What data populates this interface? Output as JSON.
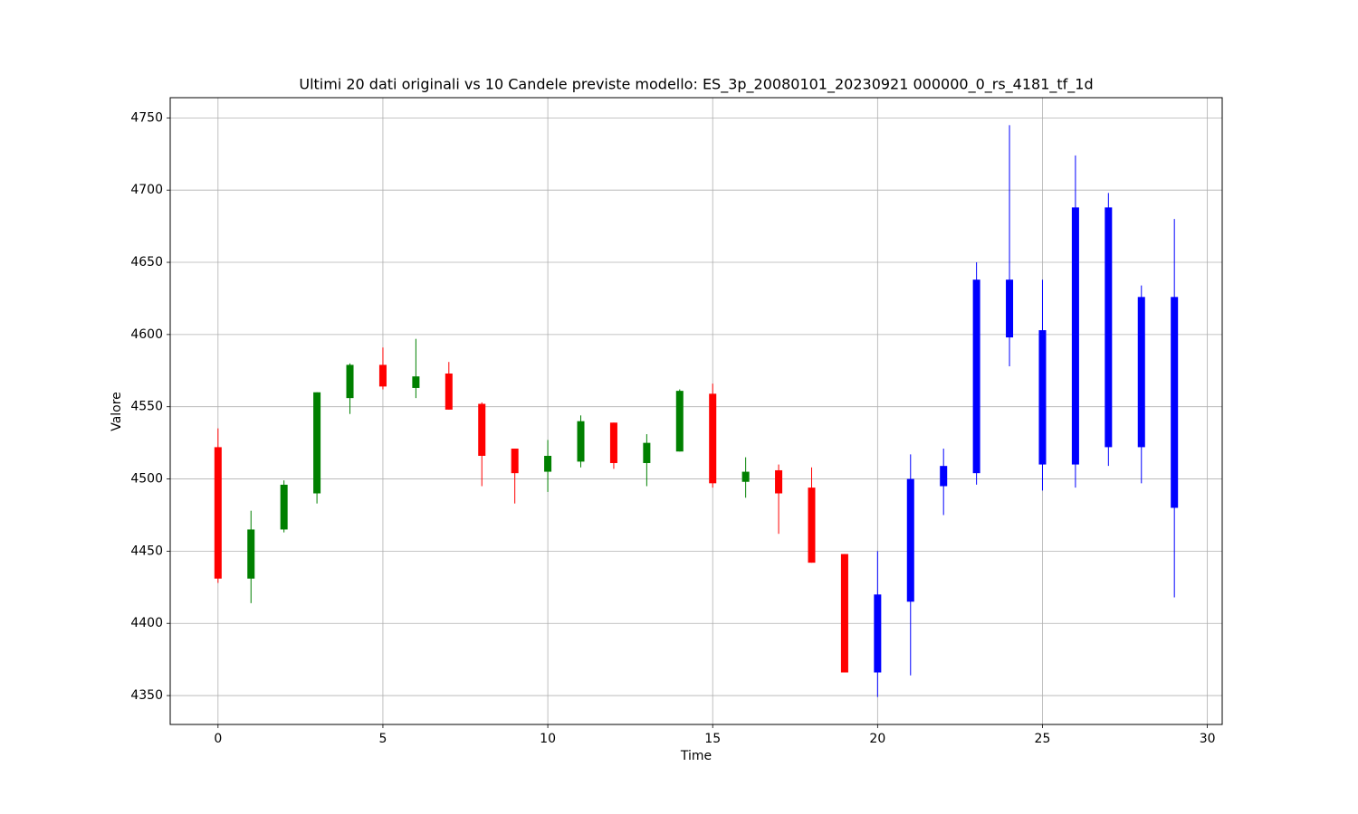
{
  "chart_data": {
    "type": "candlestick",
    "title": "Ultimi 20 dati originali vs 10 Candele previste modello: ES_3p_20080101_20230921 000000_0_rs_4181_tf_1d",
    "xlabel": "Time",
    "ylabel": "Valore",
    "xlim": [
      -1.45,
      30.45
    ],
    "ylim": [
      4330,
      4764
    ],
    "xticks": [
      0,
      5,
      10,
      15,
      20,
      25,
      30
    ],
    "yticks": [
      4350,
      4400,
      4450,
      4500,
      4550,
      4600,
      4650,
      4700,
      4750
    ],
    "grid": true,
    "series": [
      {
        "up_color": "#008000",
        "down_color": "#ff0000",
        "x": [
          0,
          1,
          2,
          3,
          4,
          5,
          6,
          7,
          8,
          9,
          10,
          11,
          12,
          13,
          14,
          15,
          16,
          17,
          18,
          19
        ],
        "open": [
          4522,
          4431,
          4465,
          4490,
          4556,
          4579,
          4563,
          4573,
          4552,
          4521,
          4505,
          4512,
          4539,
          4511,
          4519,
          4559,
          4498,
          4506,
          4494,
          4448
        ],
        "high": [
          4535,
          4478,
          4499,
          4560,
          4580,
          4591,
          4597,
          4581,
          4553,
          4521,
          4527,
          4544,
          4539,
          4531,
          4562,
          4566,
          4515,
          4510,
          4508,
          4448
        ],
        "low": [
          4428,
          4414,
          4463,
          4483,
          4545,
          4562,
          4556,
          4548,
          4495,
          4483,
          4491,
          4508,
          4507,
          4495,
          4519,
          4494,
          4487,
          4462,
          4442,
          4366
        ],
        "close": [
          4431,
          4465,
          4496,
          4560,
          4579,
          4564,
          4571,
          4548,
          4516,
          4504,
          4516,
          4540,
          4511,
          4525,
          4561,
          4497,
          4505,
          4490,
          4442,
          4366
        ]
      },
      {
        "color": "#0000ff",
        "x": [
          20,
          21,
          22,
          23,
          24,
          25,
          26,
          27,
          28,
          29
        ],
        "open": [
          4366,
          4415,
          4495,
          4504,
          4598,
          4510,
          4510,
          4522,
          4522,
          4480
        ],
        "high": [
          4450,
          4517,
          4521,
          4650,
          4745,
          4638,
          4724,
          4698,
          4634,
          4680
        ],
        "low": [
          4349,
          4364,
          4475,
          4496,
          4578,
          4492,
          4494,
          4509,
          4497,
          4418
        ],
        "close": [
          4420,
          4500,
          4509,
          4638,
          4638,
          4603,
          4688,
          4688,
          4626,
          4626
        ]
      }
    ]
  }
}
